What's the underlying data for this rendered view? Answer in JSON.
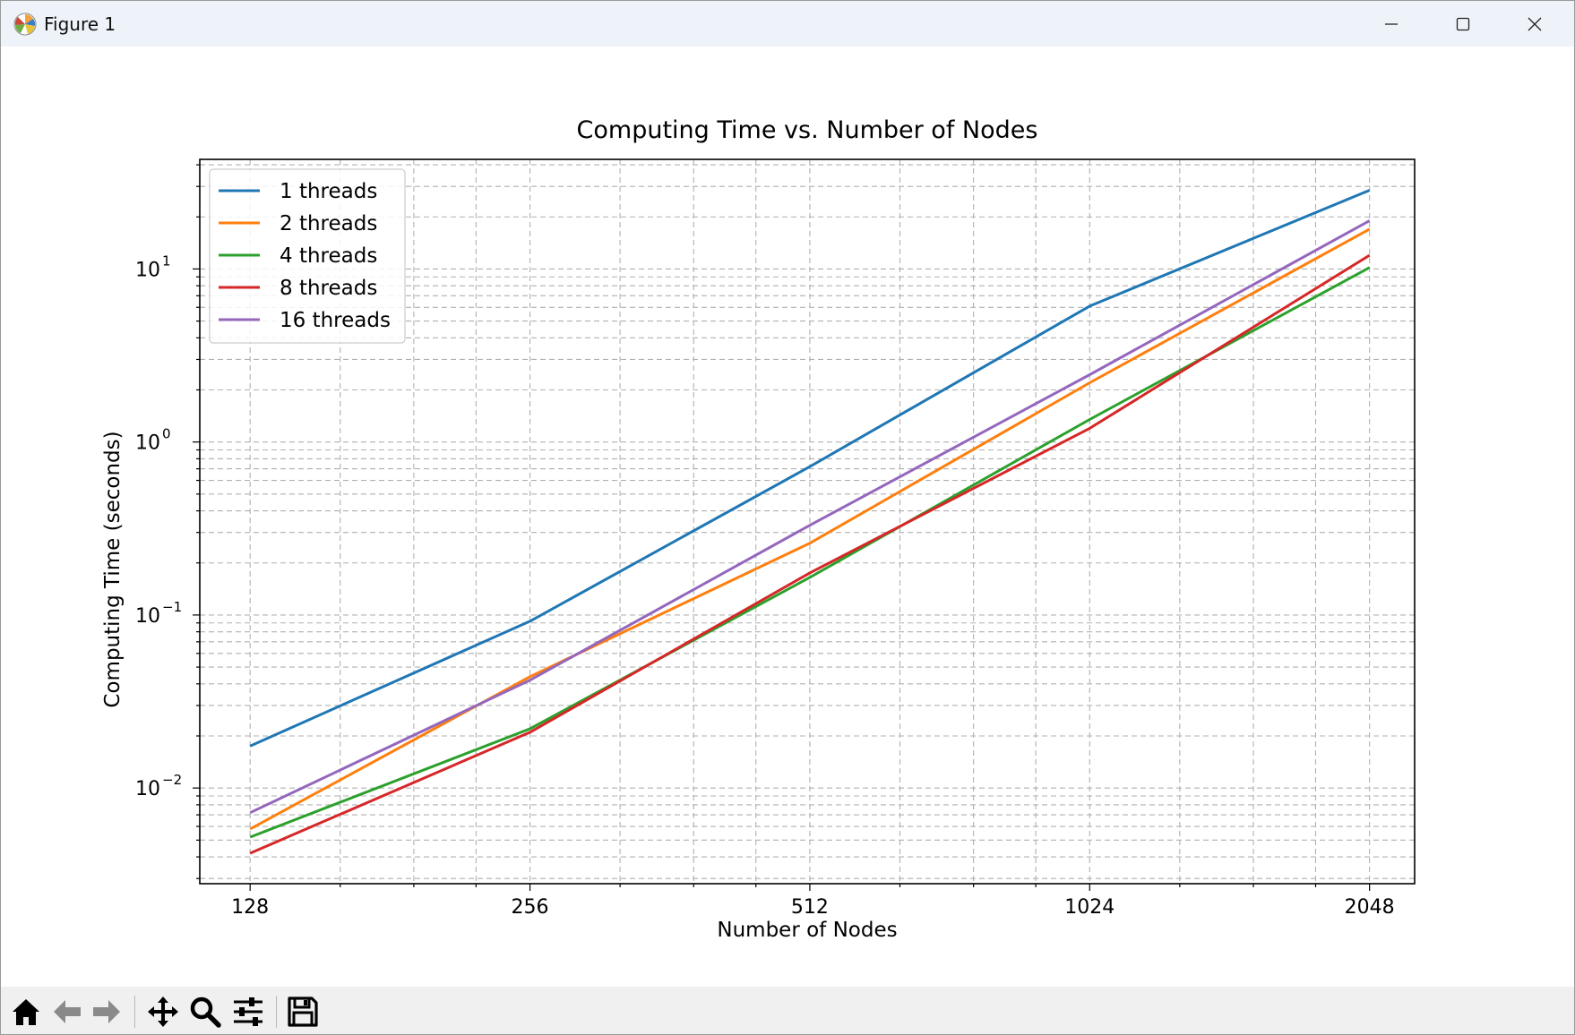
{
  "window": {
    "title": "Figure 1",
    "controls": [
      "minimize-icon",
      "maximize-icon",
      "close-icon"
    ]
  },
  "toolbar": {
    "tools": [
      "home-icon",
      "back-arrow-icon",
      "forward-arrow-icon",
      "pan-icon",
      "zoom-icon",
      "configure-subplots-icon",
      "save-icon"
    ]
  },
  "chart_data": {
    "type": "line",
    "title": "Computing Time vs. Number of Nodes",
    "xlabel": "Number of Nodes",
    "ylabel": "Computing Time (seconds)",
    "xscale": "log2",
    "yscale": "log10",
    "x": [
      128,
      256,
      512,
      1024,
      2048
    ],
    "x_tick_labels": [
      "128",
      "256",
      "512",
      "1024",
      "2048"
    ],
    "y_ticks": [
      {
        "base": "10",
        "exp": "−2",
        "value": 0.01
      },
      {
        "base": "10",
        "exp": "−1",
        "value": 0.1
      },
      {
        "base": "10",
        "exp": "0",
        "value": 1
      },
      {
        "base": "10",
        "exp": "1",
        "value": 10
      }
    ],
    "xlim": [
      113,
      2290
    ],
    "ylim": [
      0.0028,
      43
    ],
    "grid": true,
    "legend_position": "upper left",
    "series": [
      {
        "name": "1 threads",
        "color": "#1f77b4",
        "values": [
          0.0175,
          0.092,
          0.72,
          6.1,
          28.5
        ]
      },
      {
        "name": "2 threads",
        "color": "#ff7f0e",
        "values": [
          0.0058,
          0.044,
          0.26,
          2.2,
          17
        ]
      },
      {
        "name": "4 threads",
        "color": "#2ca02c",
        "values": [
          0.0052,
          0.022,
          0.165,
          1.35,
          10.2
        ]
      },
      {
        "name": "8 threads",
        "color": "#d62728",
        "values": [
          0.0042,
          0.021,
          0.175,
          1.2,
          12
        ]
      },
      {
        "name": "16 threads",
        "color": "#9467bd",
        "values": [
          0.0072,
          0.042,
          0.33,
          2.45,
          19
        ]
      }
    ]
  }
}
